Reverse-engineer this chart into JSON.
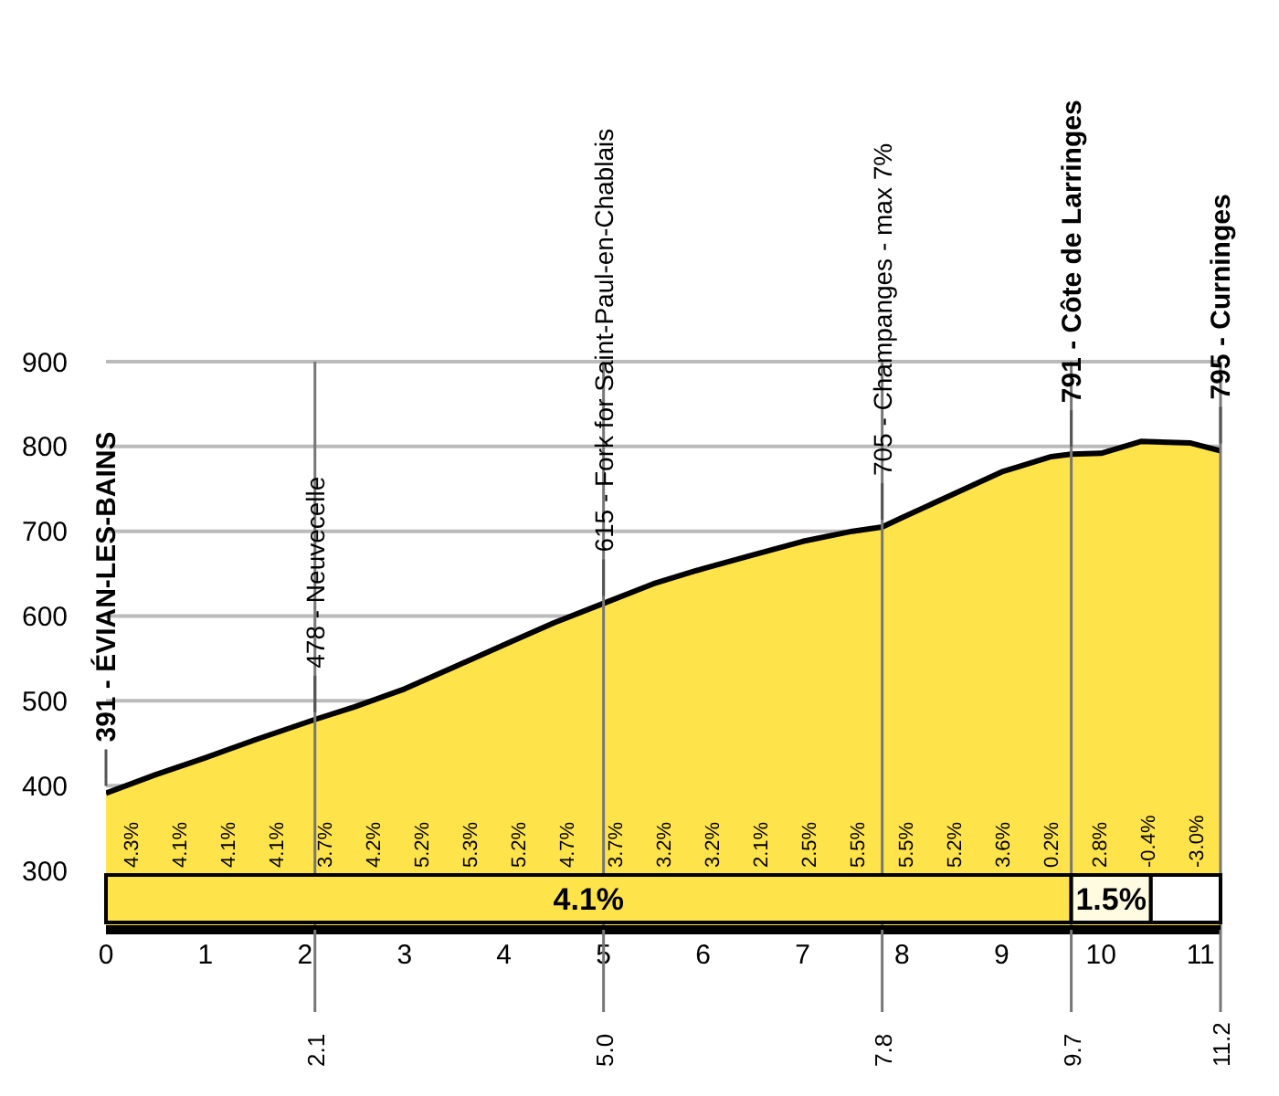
{
  "chart_data": {
    "type": "area",
    "x": [
      0,
      0.5,
      1,
      1.5,
      2.1,
      2.5,
      3,
      3.5,
      4,
      4.5,
      5,
      5.5,
      6,
      6.5,
      7,
      7.5,
      7.8,
      8,
      8.5,
      9,
      9.5,
      9.7,
      10,
      10.4,
      10.9,
      11.2
    ],
    "series": [
      {
        "color": "#ffe34a",
        "values": [
          391,
          413,
          433,
          454,
          478,
          493,
          514,
          540,
          566,
          592,
          615,
          638,
          656,
          672,
          688,
          700,
          705,
          716,
          743,
          770,
          788,
          791,
          792,
          806,
          804,
          795
        ]
      }
    ],
    "xlim": [
      0,
      11.2
    ],
    "xticks": [
      0,
      1,
      2,
      3,
      4,
      5,
      6,
      7,
      8,
      9,
      10,
      11
    ],
    "ylim": [
      230,
      900
    ],
    "yticks": [
      300,
      400,
      500,
      600,
      700,
      800,
      900
    ],
    "grid": "y",
    "legend": false,
    "marker": "none",
    "ref_lines": [
      {
        "axis": "x",
        "value": 2.1,
        "label": "2.1"
      },
      {
        "axis": "x",
        "value": 5.0,
        "label": "5.0"
      },
      {
        "axis": "x",
        "value": 7.8,
        "label": "7.8"
      },
      {
        "axis": "x",
        "value": 9.7,
        "label": "9.7"
      },
      {
        "axis": "x",
        "value": 11.2,
        "label": "11.2"
      }
    ],
    "bands": [
      {
        "axis": "x",
        "from": 0,
        "to": 9.7,
        "label": "4.1%",
        "color": "#ffe34a"
      },
      {
        "axis": "x",
        "from": 9.7,
        "to": 10.5,
        "label": "1.5%",
        "color": "#fffbe0"
      },
      {
        "axis": "x",
        "from": 10.5,
        "to": 11.2,
        "label": null,
        "color": "#ffffff"
      }
    ],
    "annotations": [
      {
        "text": "391 - ÉVIAN-LES-BAINS",
        "x": 0,
        "y": 391
      },
      {
        "text": "478 - Neuvecelle",
        "x": 2.1,
        "y": 478
      },
      {
        "text": "615 - Fork for Saint-Paul-en-Chablais",
        "x": 5.0,
        "y": 615
      },
      {
        "text": "705 - Champanges - max 7%",
        "x": 7.8,
        "y": 705
      },
      {
        "text": "791 - Côte de Larringes",
        "x": 9.7,
        "y": 791
      },
      {
        "text": "795 - Curninges",
        "x": 11.2,
        "y": 795
      },
      "4.3%",
      "4.1%",
      "4.1%",
      "4.1%",
      "3.7%",
      "4.2%",
      "5.2%",
      "5.3%",
      "5.2%",
      "4.7%",
      "3.7%",
      "3.2%",
      "3.2%",
      "2.1%",
      "2.5%",
      "5.5%",
      "5.5%",
      "5.2%",
      "3.6%",
      "0.2%",
      "2.8%",
      "-0.4%",
      "-3.0%"
    ]
  }
}
